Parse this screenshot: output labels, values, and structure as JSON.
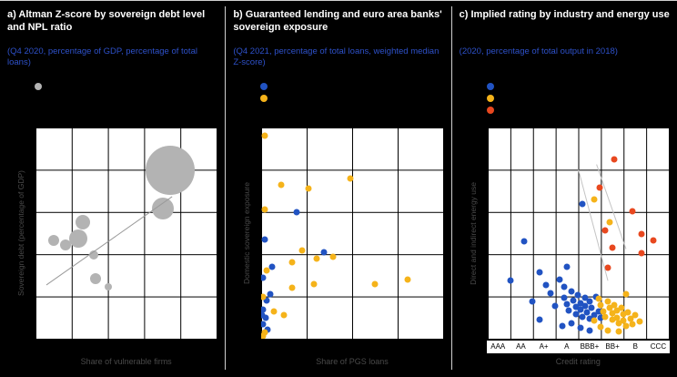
{
  "colors": {
    "background": "#000000",
    "title_text": "#ffffff",
    "subtitle_text": "#2e51c9",
    "axis_label_text": "#4a4a4a",
    "plot_background": "#ffffff",
    "gridline": "#000000",
    "series_gray": "#b3b3b3",
    "series_blue": "#2153c2",
    "series_yellow": "#f5b31a",
    "series_red": "#e8481f"
  },
  "panels": [
    {
      "title": "a) Altman Z-score by sovereign debt level and NPL ratio",
      "subtitle": "(Q4 2020, percentage of GDP, percentage of total loans)"
    },
    {
      "title": "b) Guaranteed lending and euro area banks' sovereign exposure",
      "subtitle": "(Q4 2021, percentage of total loans, weighted median Z-score)"
    },
    {
      "title": "c) Implied rating by industry and energy use",
      "subtitle": "(2020, percentage of total output in 2018)"
    }
  ],
  "chart_data": [
    {
      "type": "scatter",
      "subtype": "bubble",
      "xlabel": "Share of vulnerable firms",
      "ylabel": "Sovereign debt (percentage of GDP)",
      "xlim": [
        0,
        15
      ],
      "ylim": [
        0,
        220
      ],
      "grid": true,
      "trend_color": "#9a9a9a",
      "trend_lines": [
        [
          [
            0.9,
            56
          ],
          [
            11.3,
            148
          ]
        ]
      ],
      "series": [
        {
          "name": "country-bubble",
          "color": "#b3b3b3",
          "size": 12,
          "points": [
            [
              11.1,
              175,
              54
            ],
            [
              10.5,
              136,
              24
            ],
            [
              3.9,
              121,
              16
            ],
            [
              3.5,
              104,
              20
            ],
            [
              1.5,
              102,
              12
            ],
            [
              2.5,
              98,
              12
            ],
            [
              4.8,
              87,
              10
            ],
            [
              5.0,
              63,
              12
            ],
            [
              6.0,
              54,
              8
            ]
          ]
        }
      ]
    },
    {
      "type": "scatter",
      "xlabel": "Share of PGS loans",
      "ylabel": "Domestic sovereign exposure",
      "xlim": [
        0,
        30
      ],
      "ylim": [
        0,
        10
      ],
      "grid": true,
      "series": [
        {
          "name": "series-blue",
          "color": "#2153c2",
          "size": 7,
          "points": [
            [
              5.8,
              6.0
            ],
            [
              10.3,
              4.1
            ],
            [
              0.5,
              4.7
            ],
            [
              1.7,
              3.4
            ],
            [
              0.3,
              2.9
            ],
            [
              0.8,
              1.8
            ],
            [
              0.2,
              1.4
            ],
            [
              0.1,
              1.1
            ],
            [
              0.7,
              1.0
            ],
            [
              0.3,
              0.7
            ],
            [
              1.0,
              0.45
            ],
            [
              1.4,
              2.1
            ]
          ]
        },
        {
          "name": "series-yellow",
          "color": "#f5b31a",
          "size": 7,
          "points": [
            [
              0.5,
              9.6
            ],
            [
              3.3,
              7.3
            ],
            [
              7.8,
              7.1
            ],
            [
              14.7,
              7.6
            ],
            [
              0.5,
              6.1
            ],
            [
              6.7,
              4.2
            ],
            [
              9.2,
              3.8
            ],
            [
              11.8,
              3.9
            ],
            [
              5.0,
              3.6
            ],
            [
              0.9,
              3.25
            ],
            [
              5.0,
              2.4
            ],
            [
              8.7,
              2.6
            ],
            [
              0.3,
              2.0
            ],
            [
              2.0,
              1.3
            ],
            [
              3.7,
              1.1
            ],
            [
              24.2,
              2.8
            ],
            [
              18.8,
              2.6
            ],
            [
              0.5,
              0.3
            ],
            [
              0.3,
              0.15
            ]
          ]
        }
      ]
    },
    {
      "type": "scatter",
      "xlabel": "Credit rating",
      "ylabel": "Direct and indirect energy use",
      "categories": [
        "AAA",
        "AA",
        "A+",
        "A",
        "BBB+",
        "BB+",
        "B",
        "CCC"
      ],
      "xlim": [
        0.5,
        8.5
      ],
      "ylim": [
        0,
        20
      ],
      "grid": true,
      "trend_color": "#c4c4c4",
      "trend_lines": [
        [
          [
            4.5,
            16.0
          ],
          [
            5.8,
            5.5
          ]
        ],
        [
          [
            5.3,
            16.5
          ],
          [
            6.6,
            8.5
          ]
        ]
      ],
      "series": [
        {
          "name": "series-blue",
          "color": "#2153c2",
          "size": 7,
          "points": [
            [
              2.1,
              9.2
            ],
            [
              2.8,
              6.3
            ],
            [
              3.1,
              5.1
            ],
            [
              3.3,
              4.3
            ],
            [
              3.5,
              3.1
            ],
            [
              3.7,
              5.6
            ],
            [
              3.9,
              4.9
            ],
            [
              3.9,
              3.9
            ],
            [
              4.0,
              3.3
            ],
            [
              4.1,
              2.7
            ],
            [
              4.2,
              4.5
            ],
            [
              4.3,
              3.6
            ],
            [
              4.4,
              3.0
            ],
            [
              4.4,
              2.3
            ],
            [
              4.5,
              4.1
            ],
            [
              4.6,
              3.4
            ],
            [
              4.6,
              2.8
            ],
            [
              4.7,
              2.1
            ],
            [
              4.8,
              3.9
            ],
            [
              4.8,
              3.1
            ],
            [
              4.9,
              2.5
            ],
            [
              5.0,
              1.9
            ],
            [
              5.0,
              3.5
            ],
            [
              5.1,
              2.9
            ],
            [
              5.2,
              2.2
            ],
            [
              5.3,
              4.0
            ],
            [
              5.4,
              2.6
            ],
            [
              5.5,
              2.0
            ],
            [
              4.2,
              1.5
            ],
            [
              3.8,
              1.2
            ],
            [
              4.6,
              1.0
            ],
            [
              5.0,
              0.8
            ],
            [
              4.0,
              6.8
            ],
            [
              4.7,
              12.8
            ],
            [
              1.5,
              5.5
            ],
            [
              2.5,
              3.5
            ],
            [
              2.8,
              1.8
            ]
          ]
        },
        {
          "name": "series-yellow",
          "color": "#f5b31a",
          "size": 7,
          "points": [
            [
              5.4,
              3.8
            ],
            [
              5.5,
              3.2
            ],
            [
              5.6,
              2.6
            ],
            [
              5.7,
              2.1
            ],
            [
              5.8,
              3.5
            ],
            [
              5.9,
              2.9
            ],
            [
              6.0,
              2.4
            ],
            [
              6.0,
              1.8
            ],
            [
              6.1,
              3.2
            ],
            [
              6.2,
              2.7
            ],
            [
              6.2,
              2.0
            ],
            [
              6.3,
              1.5
            ],
            [
              6.4,
              2.9
            ],
            [
              6.5,
              2.3
            ],
            [
              6.5,
              1.7
            ],
            [
              6.6,
              1.2
            ],
            [
              6.7,
              2.5
            ],
            [
              6.8,
              1.9
            ],
            [
              6.9,
              1.4
            ],
            [
              7.0,
              2.2
            ],
            [
              5.5,
              1.1
            ],
            [
              5.8,
              0.8
            ],
            [
              6.3,
              0.7
            ],
            [
              5.2,
              1.7
            ],
            [
              7.2,
              1.6
            ],
            [
              5.9,
              11.0
            ],
            [
              6.6,
              4.2
            ],
            [
              5.2,
              13.2
            ]
          ]
        },
        {
          "name": "series-red",
          "color": "#e8481f",
          "size": 7,
          "points": [
            [
              6.1,
              17.0
            ],
            [
              5.45,
              14.3
            ],
            [
              6.9,
              12.1
            ],
            [
              7.3,
              9.9
            ],
            [
              5.7,
              10.3
            ],
            [
              7.3,
              8.1
            ],
            [
              6.0,
              8.6
            ],
            [
              7.8,
              9.3
            ],
            [
              5.8,
              6.7
            ]
          ]
        }
      ]
    }
  ]
}
